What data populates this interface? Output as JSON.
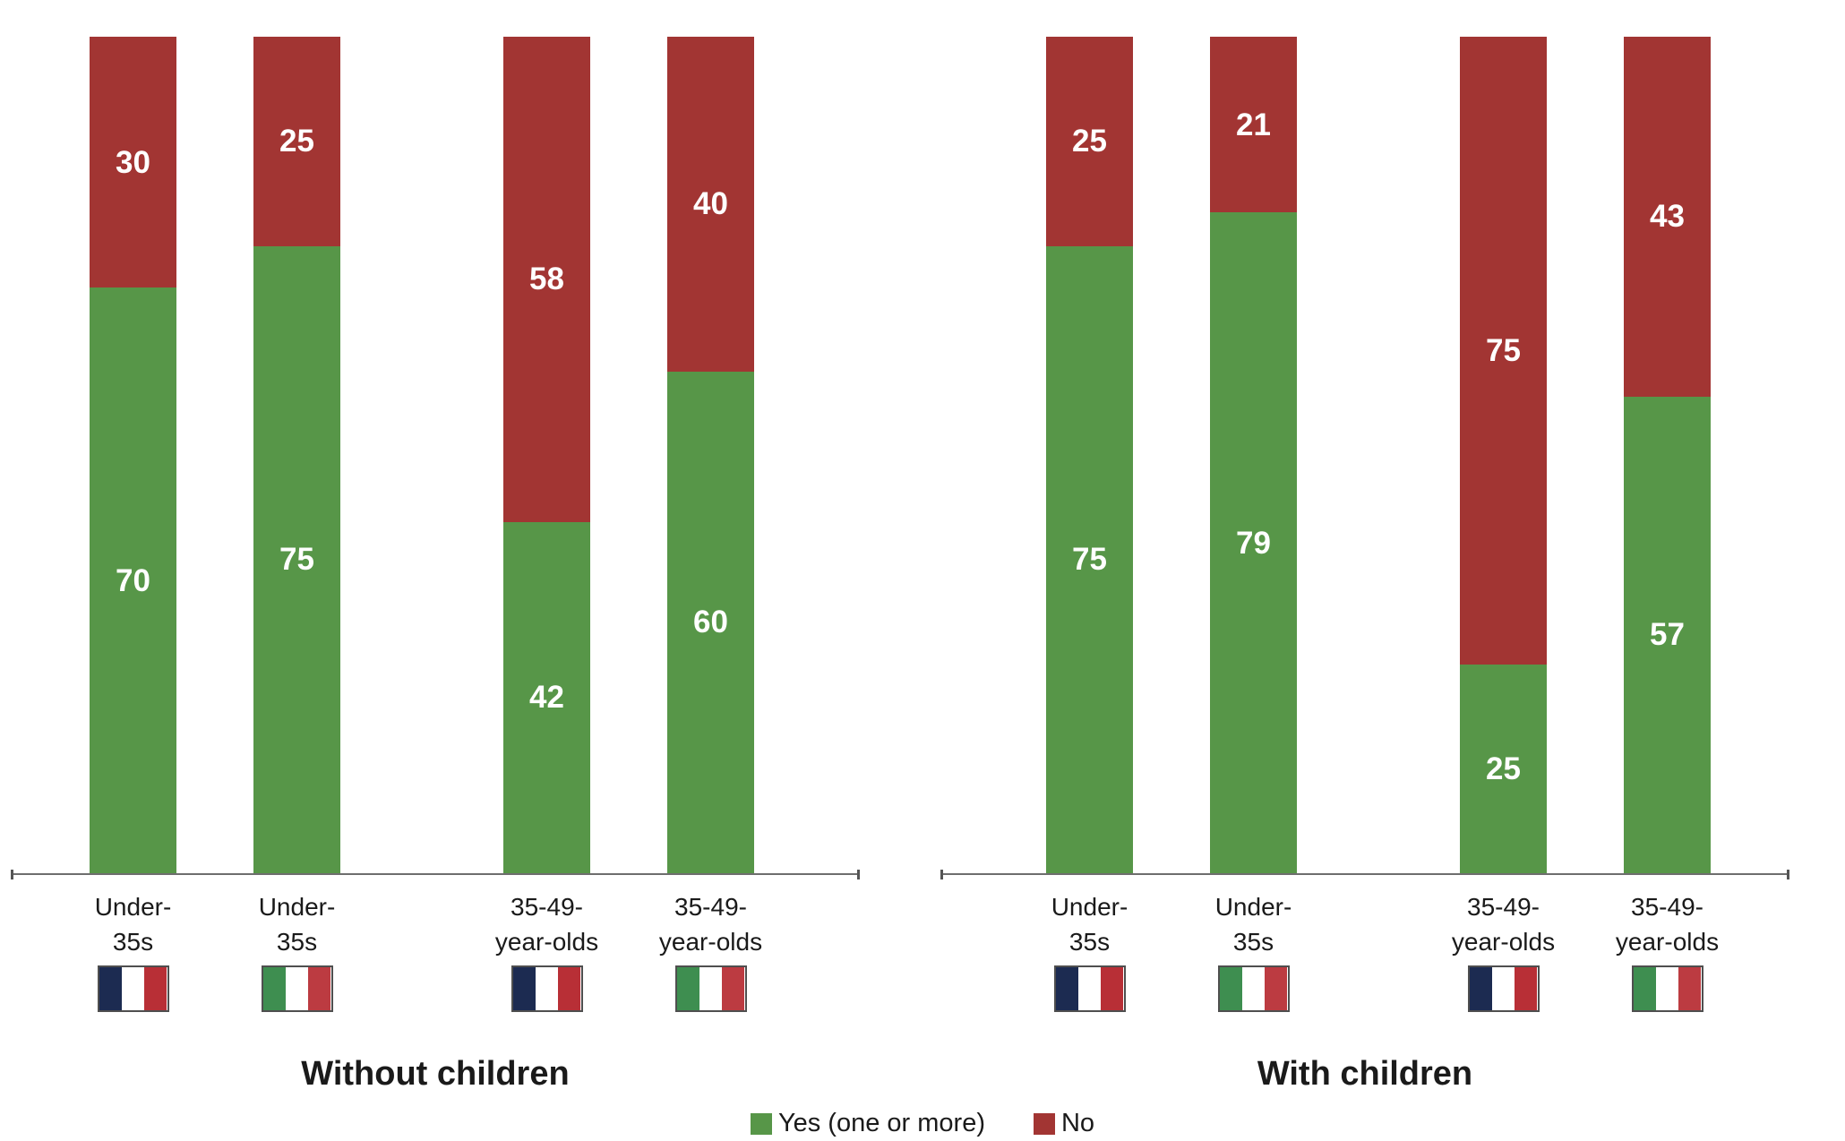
{
  "chart_data": {
    "type": "bar",
    "stacked": true,
    "orientation": "vertical",
    "unit": "%",
    "ylim": [
      0,
      100
    ],
    "grid": false,
    "series_names": [
      "Yes (one or more)",
      "No"
    ],
    "panels": [
      {
        "title": "Without children",
        "bars": [
          {
            "category_lines": [
              "Under-",
              "35s"
            ],
            "country": "France",
            "flag": "france",
            "values": {
              "yes": 70,
              "no": 30
            }
          },
          {
            "category_lines": [
              "Under-",
              "35s"
            ],
            "country": "Italy",
            "flag": "italy",
            "values": {
              "yes": 75,
              "no": 25
            }
          },
          {
            "category_lines": [
              "35-49-",
              "year-olds"
            ],
            "country": "France",
            "flag": "france",
            "values": {
              "yes": 42,
              "no": 58
            }
          },
          {
            "category_lines": [
              "35-49-",
              "year-olds"
            ],
            "country": "Italy",
            "flag": "italy",
            "values": {
              "yes": 60,
              "no": 40
            }
          }
        ]
      },
      {
        "title": "With children",
        "bars": [
          {
            "category_lines": [
              "Under-",
              "35s"
            ],
            "country": "France",
            "flag": "france",
            "values": {
              "yes": 75,
              "no": 25
            }
          },
          {
            "category_lines": [
              "Under-",
              "35s"
            ],
            "country": "Italy",
            "flag": "italy",
            "values": {
              "yes": 79,
              "no": 21
            }
          },
          {
            "category_lines": [
              "35-49-",
              "year-olds"
            ],
            "country": "France",
            "flag": "france",
            "values": {
              "yes": 25,
              "no": 75
            }
          },
          {
            "category_lines": [
              "35-49-",
              "year-olds"
            ],
            "country": "Italy",
            "flag": "italy",
            "values": {
              "yes": 57,
              "no": 43
            }
          }
        ]
      }
    ],
    "legend": {
      "position": "bottom-center",
      "items": [
        {
          "label": "Yes (one or more)",
          "series": "yes"
        },
        {
          "label": "No",
          "series": "no"
        }
      ]
    },
    "colors": {
      "yes": "#579648",
      "no": "#A23533",
      "axis": "#6E6E6E",
      "tick": "#555555",
      "text": "#1A1A1A",
      "value_text": "#FFFFFF",
      "flag_border": "#4F4F4F",
      "flag_france": [
        "#1C2B51",
        "#FFFFFF",
        "#B82F36"
      ],
      "flag_italy": [
        "#3E8E50",
        "#FFFFFF",
        "#BC3B41"
      ]
    }
  }
}
